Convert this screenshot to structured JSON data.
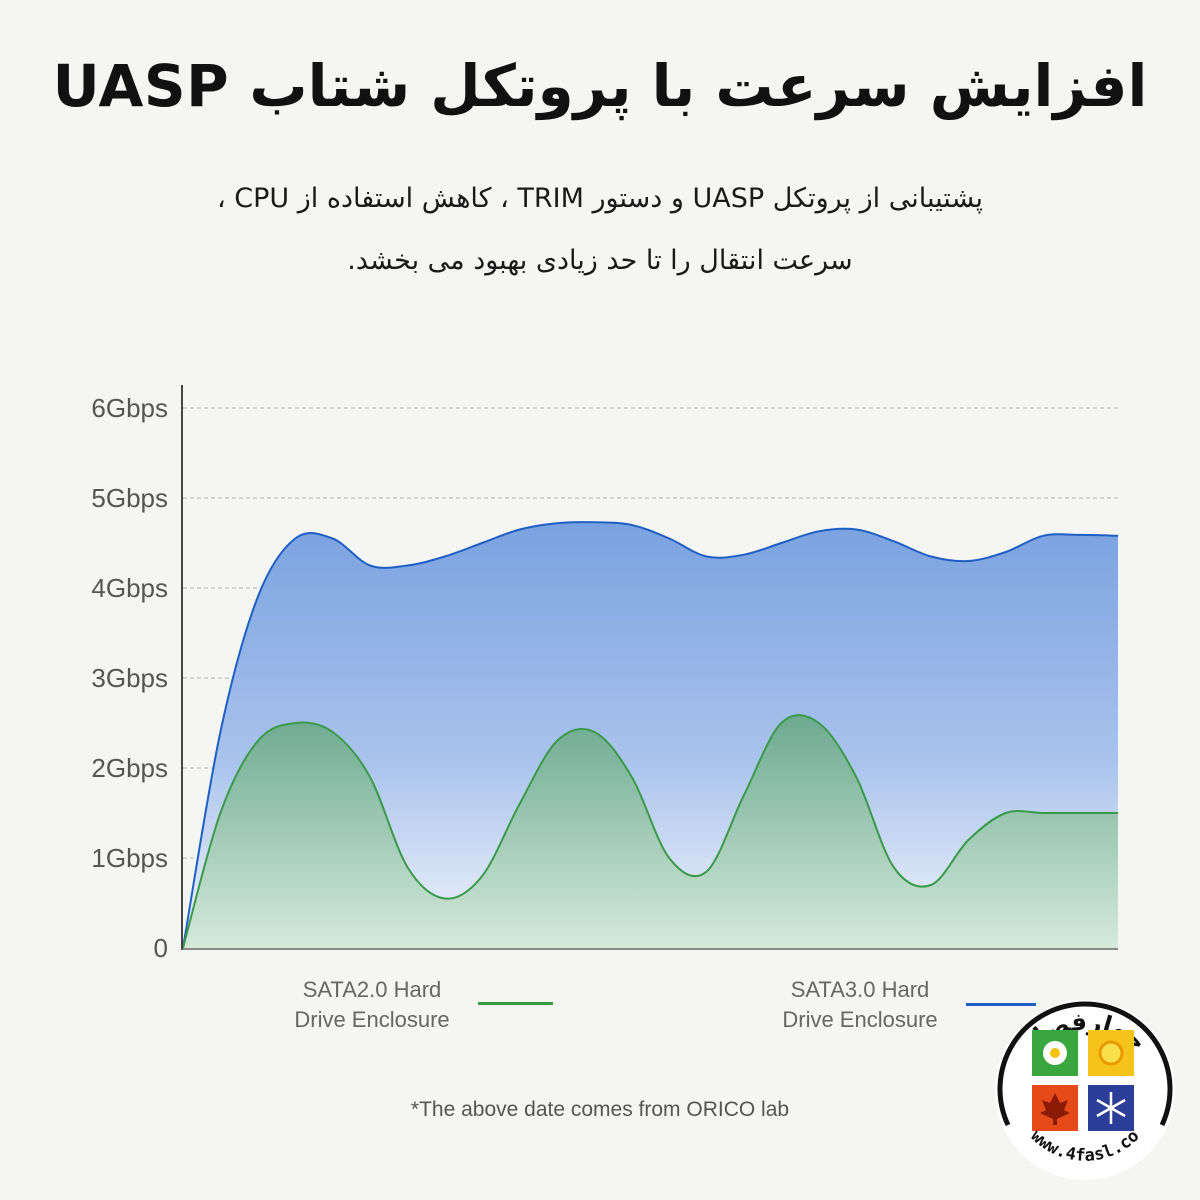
{
  "header": {
    "title": "افزایش سرعت با پروتکل شتاب UASP",
    "subtitle_line1": "پشتیبانی از پروتکل UASP و دستور TRIM ، کاهش استفاده از CPU ،",
    "subtitle_line2": "سرعت انتقال را تا حد زیادی بهبود می بخشد."
  },
  "chart_data": {
    "type": "area",
    "x": [
      0,
      4,
      8,
      12,
      16,
      20,
      24,
      28,
      32,
      36,
      40,
      44,
      48,
      52,
      56,
      60,
      64,
      68,
      72,
      76,
      80,
      84,
      88,
      92,
      96,
      100
    ],
    "yticks": [
      "0",
      "1Gbps",
      "2Gbps",
      "3Gbps",
      "4Gbps",
      "5Gbps",
      "6Gbps"
    ],
    "ylim": [
      0,
      6
    ],
    "grid": true,
    "series": [
      {
        "name": "SATA3.0 Hard Drive Enclosure",
        "color": "#1f5fc4",
        "values": [
          0,
          2.4,
          3.9,
          4.55,
          4.55,
          4.25,
          4.25,
          4.35,
          4.5,
          4.65,
          4.72,
          4.73,
          4.7,
          4.55,
          4.35,
          4.37,
          4.5,
          4.63,
          4.65,
          4.52,
          4.35,
          4.3,
          4.4,
          4.58,
          4.59,
          4.58
        ]
      },
      {
        "name": "SATA2.0 Hard Drive Enclosure",
        "color": "#3a9a4a",
        "values": [
          0,
          1.5,
          2.3,
          2.5,
          2.4,
          1.9,
          0.9,
          0.55,
          0.8,
          1.6,
          2.3,
          2.4,
          1.9,
          1.0,
          0.85,
          1.7,
          2.5,
          2.5,
          1.9,
          0.9,
          0.7,
          1.2,
          1.5,
          1.5,
          1.5,
          1.5
        ]
      }
    ]
  },
  "legend": {
    "sata2_line1": "SATA2.0 Hard",
    "sata2_line2": "Drive Enclosure",
    "sata3_line1": "SATA3.0 Hard",
    "sata3_line2": "Drive Enclosure"
  },
  "footnote": "*The above date comes from ORICO lab",
  "logo": {
    "brand_text": "چهارفصل",
    "url_text": "www.4fasl.co"
  }
}
